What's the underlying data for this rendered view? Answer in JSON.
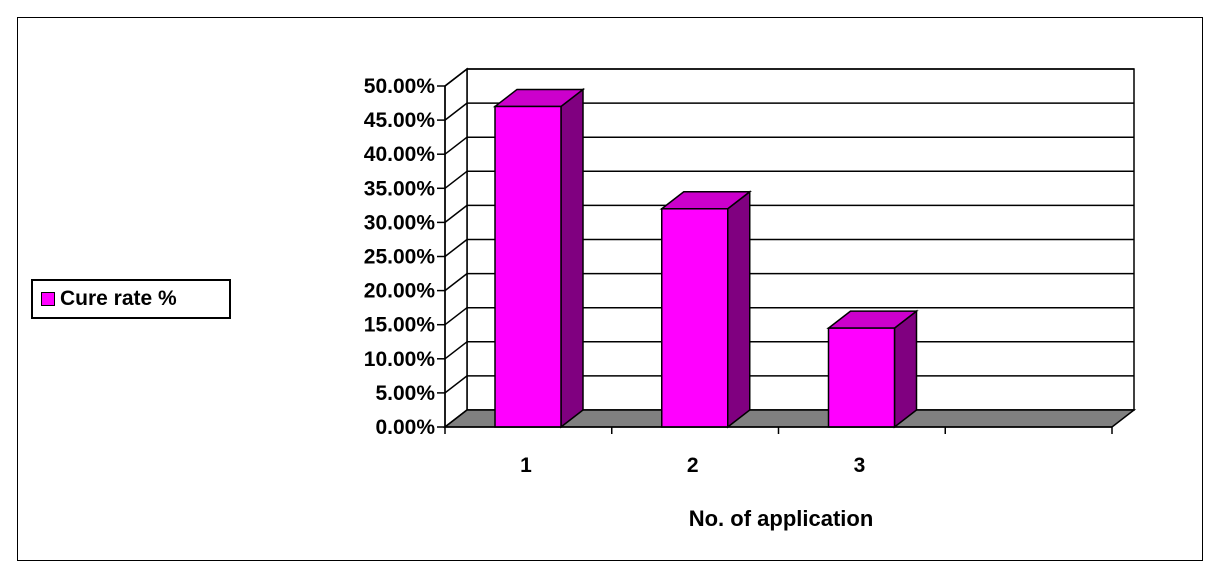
{
  "chart_data": {
    "type": "bar",
    "categories": [
      "1",
      "2",
      "3"
    ],
    "series": [
      {
        "name": "Cure rate %",
        "values": [
          0.47,
          0.32,
          0.145
        ]
      }
    ],
    "xlabel": "No. of application",
    "ylabel": "",
    "ylim": [
      0,
      0.5
    ],
    "yticks": [
      "0.00%",
      "5.00%",
      "10.00%",
      "15.00%",
      "20.00%",
      "25.00%",
      "30.00%",
      "35.00%",
      "40.00%",
      "45.00%",
      "50.00%"
    ],
    "grid": true,
    "legend_position": "left",
    "colors": {
      "bar_front": "#ff00ff",
      "bar_side": "#800080",
      "bar_top": "#cc00cc",
      "floor": "#808080"
    }
  }
}
